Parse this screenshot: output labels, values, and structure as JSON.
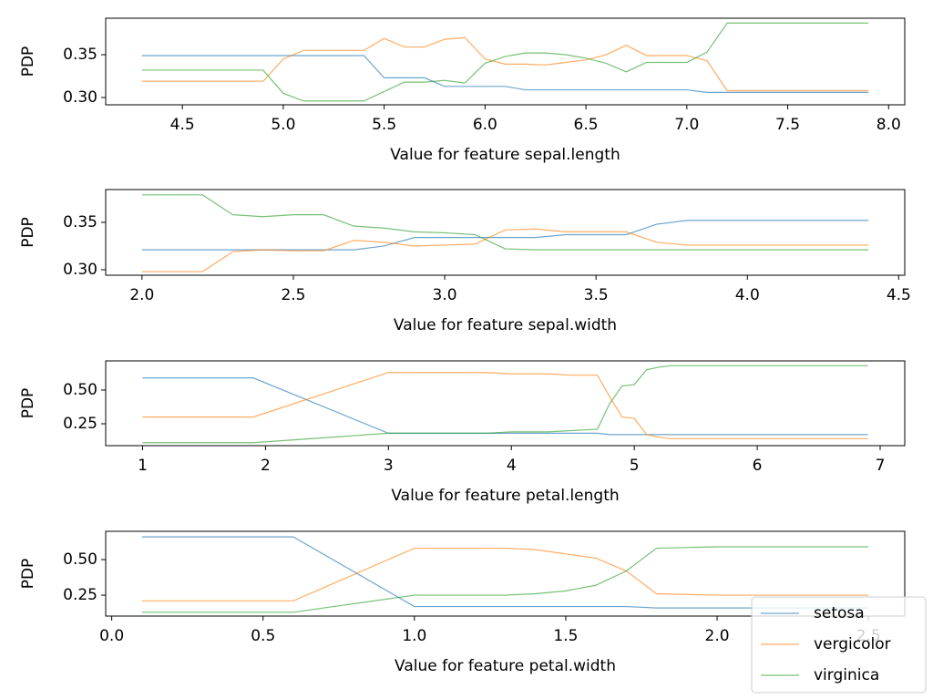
{
  "chart_data": [
    {
      "type": "line",
      "xlabel": "Value for feature sepal.length",
      "ylabel": "PDP",
      "x": [
        4.3,
        4.4,
        4.5,
        4.6,
        4.7,
        4.8,
        4.9,
        5.0,
        5.1,
        5.2,
        5.3,
        5.4,
        5.5,
        5.6,
        5.7,
        5.8,
        5.9,
        6.0,
        6.1,
        6.2,
        6.3,
        6.4,
        6.5,
        6.6,
        6.7,
        6.8,
        6.9,
        7.0,
        7.1,
        7.2,
        7.3,
        7.4,
        7.5,
        7.6,
        7.7,
        7.8,
        7.9
      ],
      "series": [
        {
          "color": "#1f77b4",
          "values": [
            0.349,
            0.349,
            0.349,
            0.349,
            0.349,
            0.349,
            0.349,
            0.349,
            0.349,
            0.349,
            0.349,
            0.349,
            0.323,
            0.323,
            0.323,
            0.313,
            0.313,
            0.313,
            0.313,
            0.309,
            0.309,
            0.309,
            0.309,
            0.309,
            0.309,
            0.309,
            0.309,
            0.309,
            0.306,
            0.306,
            0.306,
            0.306,
            0.306,
            0.306,
            0.306,
            0.306,
            0.306
          ]
        },
        {
          "color": "#ff7f0e",
          "values": [
            0.319,
            0.319,
            0.319,
            0.319,
            0.319,
            0.319,
            0.319,
            0.345,
            0.355,
            0.355,
            0.355,
            0.355,
            0.369,
            0.359,
            0.359,
            0.368,
            0.37,
            0.345,
            0.339,
            0.339,
            0.338,
            0.341,
            0.344,
            0.35,
            0.361,
            0.349,
            0.349,
            0.349,
            0.343,
            0.308,
            0.308,
            0.308,
            0.308,
            0.308,
            0.308,
            0.308,
            0.308
          ]
        },
        {
          "color": "#2ca02c",
          "values": [
            0.332,
            0.332,
            0.332,
            0.332,
            0.332,
            0.332,
            0.332,
            0.305,
            0.296,
            0.296,
            0.296,
            0.296,
            0.307,
            0.318,
            0.318,
            0.32,
            0.317,
            0.34,
            0.348,
            0.352,
            0.352,
            0.35,
            0.346,
            0.34,
            0.33,
            0.341,
            0.341,
            0.341,
            0.353,
            0.387,
            0.387,
            0.387,
            0.387,
            0.387,
            0.387,
            0.387,
            0.387
          ]
        }
      ],
      "xlim": [
        4.12,
        8.08
      ],
      "ylim": [
        0.2915,
        0.3926
      ],
      "xticks": [
        4.5,
        {
          "value": 5,
          "label": "5.0"
        },
        5.5,
        {
          "value": 6,
          "label": "6.0"
        },
        6.5,
        {
          "value": 7,
          "label": "7.0"
        },
        7.5,
        {
          "value": 8,
          "label": "8.0"
        }
      ],
      "yticks": [
        {
          "value": 0.3,
          "label": "0.30"
        },
        0.35
      ]
    },
    {
      "type": "line",
      "xlabel": "Value for feature sepal.width",
      "ylabel": "PDP",
      "x": [
        2.0,
        2.1,
        2.2,
        2.3,
        2.4,
        2.5,
        2.6,
        2.7,
        2.8,
        2.9,
        3.0,
        3.1,
        3.2,
        3.3,
        3.4,
        3.5,
        3.6,
        3.7,
        3.8,
        3.9,
        4.0,
        4.1,
        4.2,
        4.3,
        4.4
      ],
      "series": [
        {
          "color": "#1f77b4",
          "values": [
            0.321,
            0.321,
            0.321,
            0.321,
            0.321,
            0.321,
            0.321,
            0.321,
            0.325,
            0.334,
            0.334,
            0.334,
            0.334,
            0.334,
            0.337,
            0.337,
            0.337,
            0.348,
            0.352,
            0.352,
            0.352,
            0.352,
            0.352,
            0.352,
            0.352
          ]
        },
        {
          "color": "#ff7f0e",
          "values": [
            0.298,
            0.298,
            0.298,
            0.319,
            0.321,
            0.32,
            0.32,
            0.331,
            0.329,
            0.325,
            0.326,
            0.327,
            0.342,
            0.343,
            0.34,
            0.34,
            0.34,
            0.329,
            0.326,
            0.326,
            0.326,
            0.326,
            0.326,
            0.326,
            0.326
          ]
        },
        {
          "color": "#2ca02c",
          "values": [
            0.379,
            0.379,
            0.379,
            0.358,
            0.356,
            0.358,
            0.358,
            0.346,
            0.344,
            0.34,
            0.339,
            0.337,
            0.322,
            0.321,
            0.321,
            0.321,
            0.321,
            0.321,
            0.321,
            0.321,
            0.321,
            0.321,
            0.321,
            0.321,
            0.321
          ]
        }
      ],
      "xlim": [
        1.88,
        4.52
      ],
      "ylim": [
        0.2942,
        0.3846
      ],
      "xticks": [
        {
          "value": 2,
          "label": "2.0"
        },
        2.5,
        {
          "value": 3,
          "label": "3.0"
        },
        3.5,
        {
          "value": 4,
          "label": "4.0"
        },
        4.5
      ],
      "yticks": [
        {
          "value": 0.3,
          "label": "0.30"
        },
        0.35
      ]
    },
    {
      "type": "line",
      "xlabel": "Value for feature petal.length",
      "ylabel": "PDP",
      "x": [
        1.0,
        1.9,
        3.0,
        3.5,
        3.8,
        4.0,
        4.3,
        4.5,
        4.7,
        4.8,
        4.9,
        5.0,
        5.1,
        5.2,
        5.3,
        5.5,
        6.9
      ],
      "series": [
        {
          "color": "#1f77b4",
          "values": [
            0.59,
            0.59,
            0.18,
            0.18,
            0.18,
            0.18,
            0.18,
            0.18,
            0.18,
            0.17,
            0.17,
            0.17,
            0.17,
            0.17,
            0.17,
            0.17,
            0.17
          ]
        },
        {
          "color": "#ff7f0e",
          "values": [
            0.3,
            0.3,
            0.63,
            0.63,
            0.63,
            0.62,
            0.62,
            0.61,
            0.61,
            0.45,
            0.3,
            0.29,
            0.17,
            0.15,
            0.14,
            0.14,
            0.14
          ]
        },
        {
          "color": "#2ca02c",
          "values": [
            0.11,
            0.11,
            0.18,
            0.18,
            0.18,
            0.19,
            0.19,
            0.2,
            0.21,
            0.4,
            0.53,
            0.54,
            0.65,
            0.67,
            0.68,
            0.68,
            0.68
          ]
        }
      ],
      "xlim": [
        0.7,
        7.2
      ],
      "ylim": [
        0.088,
        0.716
      ],
      "xticks": [
        1,
        2,
        3,
        4,
        5,
        6,
        7
      ],
      "yticks": [
        0.25,
        {
          "value": 0.5,
          "label": "0.50"
        }
      ]
    },
    {
      "type": "line",
      "xlabel": "Value for feature petal.width",
      "ylabel": "PDP",
      "x": [
        0.1,
        0.6,
        1.0,
        1.3,
        1.4,
        1.5,
        1.6,
        1.7,
        1.8,
        2.0,
        2.5
      ],
      "series": [
        {
          "name": "setosa",
          "color": "#1f77b4",
          "values": [
            0.66,
            0.66,
            0.17,
            0.17,
            0.17,
            0.17,
            0.17,
            0.17,
            0.16,
            0.16,
            0.16
          ]
        },
        {
          "name": "vergicolor",
          "color": "#ff7f0e",
          "values": [
            0.21,
            0.21,
            0.58,
            0.58,
            0.57,
            0.54,
            0.51,
            0.42,
            0.26,
            0.25,
            0.25
          ]
        },
        {
          "name": "virginica",
          "color": "#2ca02c",
          "values": [
            0.13,
            0.13,
            0.25,
            0.25,
            0.26,
            0.28,
            0.32,
            0.42,
            0.58,
            0.59,
            0.59
          ]
        }
      ],
      "xlim": [
        -0.02,
        2.62
      ],
      "ylim": [
        0.103,
        0.699
      ],
      "xticks": [
        {
          "value": 0,
          "label": "0.0"
        },
        0.5,
        {
          "value": 1,
          "label": "1.0"
        },
        1.5,
        {
          "value": 2,
          "label": "2.0"
        },
        2.5
      ],
      "yticks": [
        0.25,
        {
          "value": 0.5,
          "label": "0.50"
        }
      ],
      "legend": "lower right"
    }
  ]
}
